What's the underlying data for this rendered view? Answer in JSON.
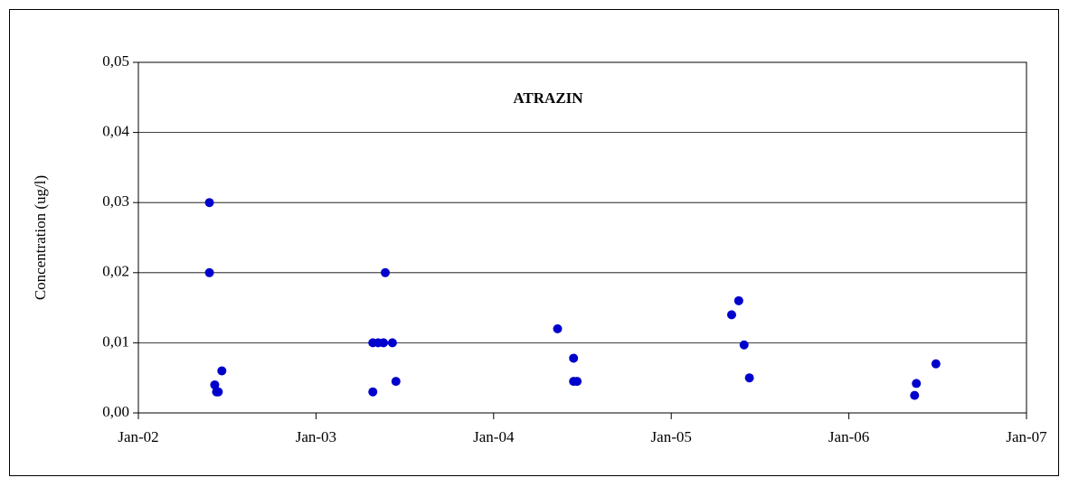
{
  "chart_data": {
    "type": "scatter",
    "title": "ATRAZIN",
    "y_label": "Concentration (ug/l)",
    "color": "#0000cc",
    "x": [
      2002.4,
      2002.4,
      2002.43,
      2002.44,
      2002.45,
      2002.47,
      2003.32,
      2003.32,
      2003.35,
      2003.38,
      2003.39,
      2003.43,
      2003.45,
      2004.36,
      2004.45,
      2004.45,
      2004.47,
      2005.34,
      2005.38,
      2005.41,
      2005.44,
      2006.37,
      2006.38,
      2006.49
    ],
    "values": [
      0.03,
      0.02,
      0.004,
      0.003,
      0.003,
      0.006,
      0.01,
      0.003,
      0.01,
      0.01,
      0.02,
      0.01,
      0.0045,
      0.012,
      0.0078,
      0.0045,
      0.0045,
      0.014,
      0.016,
      0.0097,
      0.005,
      0.0025,
      0.0042,
      0.007
    ],
    "xlim": [
      2002,
      2007
    ],
    "xticks": [
      {
        "value": 2002,
        "label": "Jan-02"
      },
      {
        "value": 2003,
        "label": "Jan-03"
      },
      {
        "value": 2004,
        "label": "Jan-04"
      },
      {
        "value": 2005,
        "label": "Jan-05"
      },
      {
        "value": 2006,
        "label": "Jan-06"
      },
      {
        "value": 2007,
        "label": "Jan-07"
      }
    ],
    "ylim": [
      0,
      0.05
    ],
    "yticks": [
      {
        "value": 0,
        "label": "0,00"
      },
      {
        "value": 0.01,
        "label": "0,01"
      },
      {
        "value": 0.02,
        "label": "0,02"
      },
      {
        "value": 0.03,
        "label": "0,03"
      },
      {
        "value": 0.04,
        "label": "0,04"
      },
      {
        "value": 0.05,
        "label": "0,05"
      }
    ],
    "grid": true
  }
}
